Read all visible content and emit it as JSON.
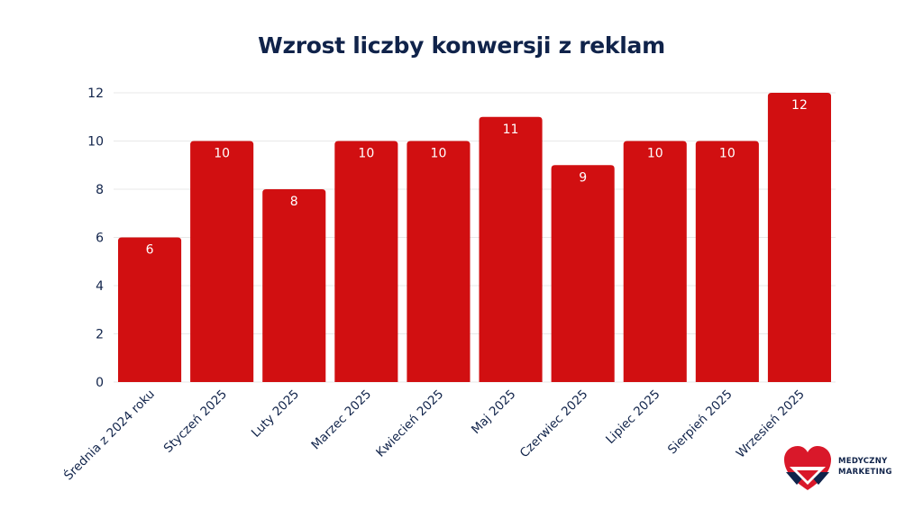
{
  "chart_data": {
    "type": "bar",
    "title": "Wzrost liczby konwersji z reklam",
    "xlabel": "",
    "ylabel": "",
    "categories": [
      "Średnia z 2024 roku",
      "Styczeń 2025",
      "Luty 2025",
      "Marzec 2025",
      "Kwiecień 2025",
      "Maj 2025",
      "Czerwiec 2025",
      "Lipiec 2025",
      "Sierpień 2025",
      "Wrzesień 2025"
    ],
    "values": [
      6,
      10,
      8,
      10,
      10,
      11,
      9,
      10,
      10,
      12
    ],
    "ylim": [
      0,
      12
    ],
    "yticks": [
      0,
      2,
      4,
      6,
      8,
      10,
      12
    ],
    "grid": true,
    "legend": "none",
    "data_labels": true
  },
  "colors": {
    "bar": "#d10f11",
    "title": "#10234a",
    "axis_text": "#10234a",
    "grid": "#e8e8e8",
    "data_label": "#ffffff",
    "logo_red": "#d9182a",
    "logo_navy": "#10234a"
  },
  "logo": {
    "icon": "heart-shield-icon",
    "line1": "MEDYCZNY",
    "line2": "MARKETING"
  }
}
